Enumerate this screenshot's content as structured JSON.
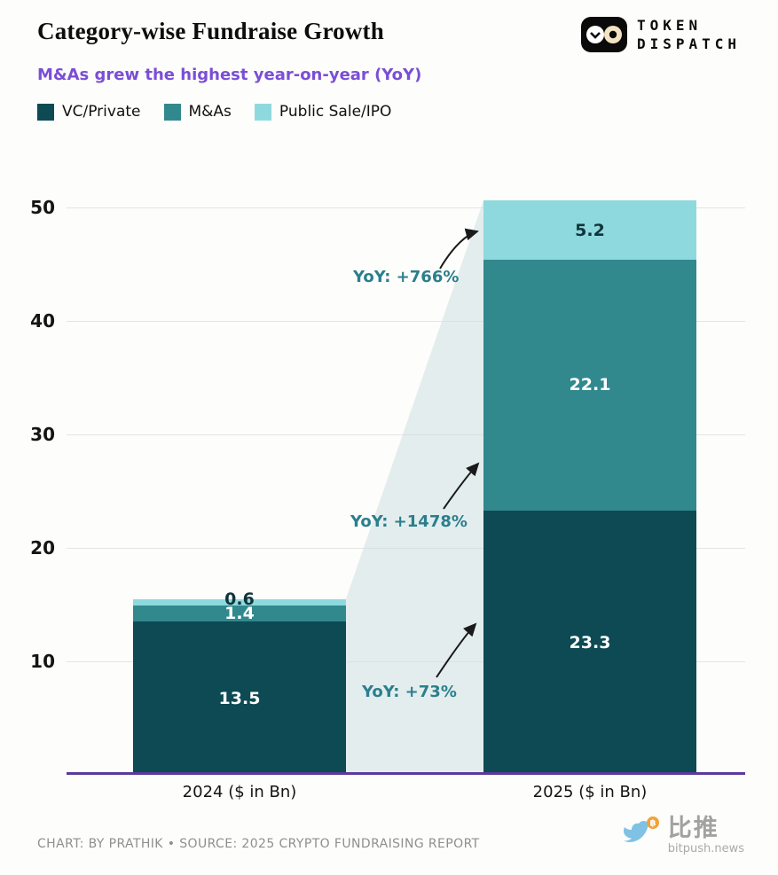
{
  "header": {
    "title": "Category-wise Fundraise Growth",
    "subtitle": "M&As grew the highest year-on-year (YoY)"
  },
  "logo": {
    "line1": "TOKEN",
    "line2": "DISPATCH"
  },
  "chart_data": {
    "type": "bar",
    "stacked": true,
    "title": "Category-wise Fundraise Growth",
    "categories": [
      "2024 ($ in Bn)",
      "2025 ($ in Bn)"
    ],
    "series": [
      {
        "name": "VC/Private",
        "color": "#0d4a53",
        "label_color": "#ffffff",
        "values": [
          13.5,
          23.3
        ]
      },
      {
        "name": "M&As",
        "color": "#31898e",
        "label_color": "#ffffff",
        "values": [
          1.4,
          22.1
        ]
      },
      {
        "name": "Public Sale/IPO",
        "color": "#8ed9de",
        "label_color": "#10343b",
        "values": [
          0.6,
          5.2
        ]
      }
    ],
    "yticks": [
      10,
      20,
      30,
      40,
      50
    ],
    "ylim": [
      0,
      52
    ],
    "grid": true,
    "legend_position": "top-left",
    "axis_color": "#5b3a9b",
    "annotation_color": "#2b7f8c",
    "annotations": [
      {
        "text": "YoY: +766%",
        "points_to": "Public Sale/IPO (2025)"
      },
      {
        "text": "YoY: +1478%",
        "points_to": "M&As (2025)"
      },
      {
        "text": "YoY: +73%",
        "points_to": "VC/Private (2025)"
      }
    ]
  },
  "footer": {
    "credit": "CHART: BY PRATHIK • SOURCE: 2025 CRYPTO FUNDRAISING REPORT",
    "brand_cn": "比推",
    "brand_url": "bitpush.news"
  }
}
